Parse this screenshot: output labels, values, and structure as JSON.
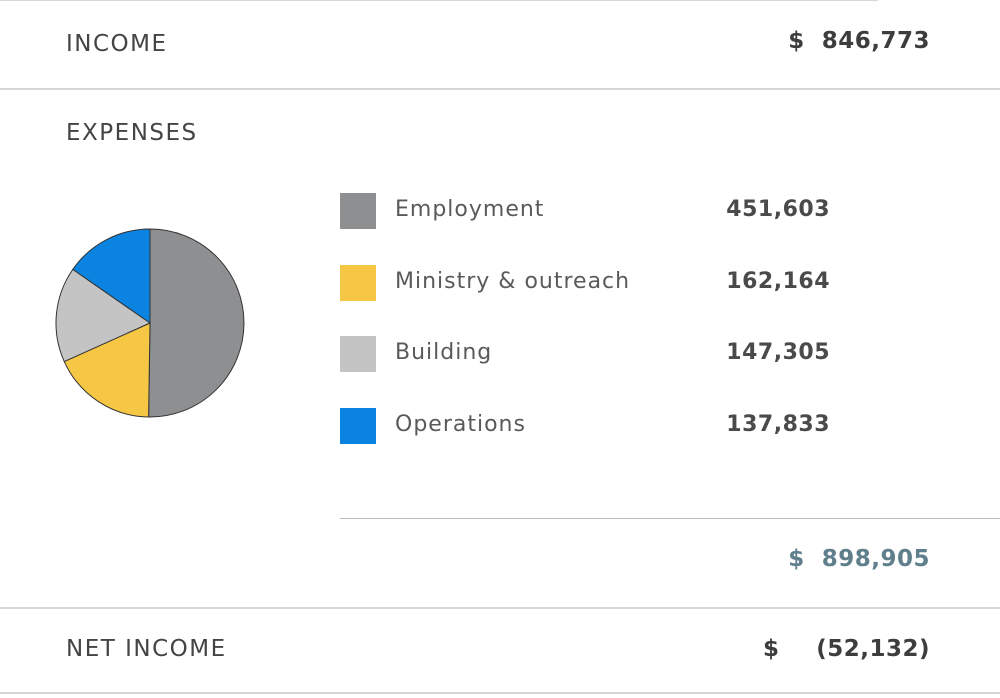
{
  "income": {
    "label": "INCOME",
    "currency": "$",
    "value": "846,773"
  },
  "expenses": {
    "label": "EXPENSES",
    "total_currency": "$",
    "total_value": "898,905",
    "total_color": "#5f7f8c"
  },
  "net_income": {
    "label": "NET INCOME",
    "currency": "$",
    "value": "(52,132)"
  },
  "chart_data": {
    "type": "pie",
    "categories": [
      "Employment",
      "Ministry & outreach",
      "Building",
      "Operations"
    ],
    "values": [
      451603,
      162164,
      147305,
      137833
    ],
    "display_values": [
      "451,603",
      "162,164",
      "147,305",
      "137,833"
    ],
    "colors": [
      "#8e8f91",
      "#f6c744",
      "#c4c4c4",
      "#0a84e0"
    ],
    "legend_placement": "right",
    "slice_outline": "#333333"
  }
}
